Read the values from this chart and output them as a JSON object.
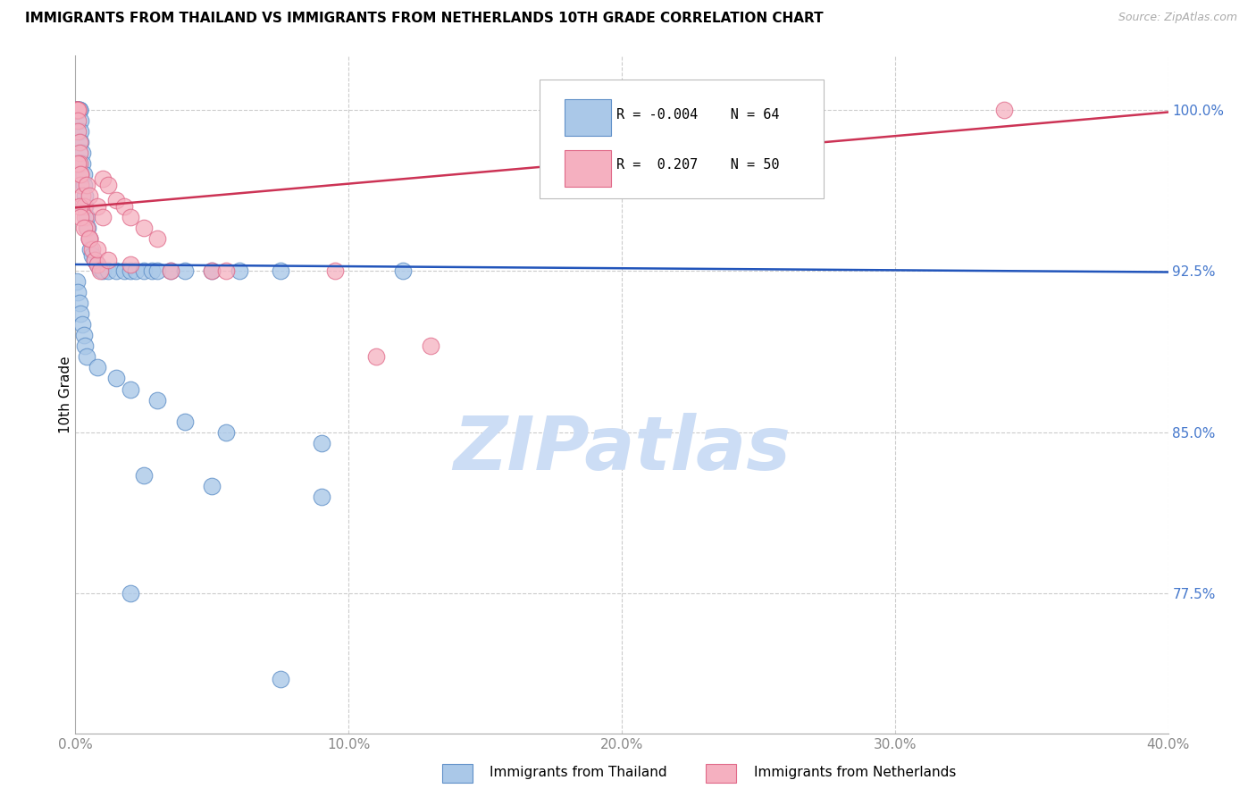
{
  "title": "IMMIGRANTS FROM THAILAND VS IMMIGRANTS FROM NETHERLANDS 10TH GRADE CORRELATION CHART",
  "source": "Source: ZipAtlas.com",
  "ylabel": "10th Grade",
  "x_tick_labels": [
    "0.0%",
    "10.0%",
    "20.0%",
    "30.0%",
    "40.0%"
  ],
  "x_tick_vals": [
    0.0,
    10.0,
    20.0,
    30.0,
    40.0
  ],
  "y_tick_labels": [
    "100.0%",
    "92.5%",
    "85.0%",
    "77.5%"
  ],
  "y_tick_vals": [
    100.0,
    92.5,
    85.0,
    77.5
  ],
  "xlim": [
    0.0,
    40.0
  ],
  "ylim": [
    71.0,
    102.5
  ],
  "legend_r_blue": "-0.004",
  "legend_n_blue": "64",
  "legend_r_pink": " 0.207",
  "legend_n_pink": "50",
  "blue_color": "#aac8e8",
  "pink_color": "#f5b0c0",
  "blue_edge": "#6090c8",
  "pink_edge": "#e06888",
  "trend_blue": "#2255bb",
  "trend_pink": "#cc3355",
  "watermark_color": "#ccddf5",
  "grid_color": "#cccccc",
  "ytick_color": "#4477cc",
  "xtick_color": "#888888",
  "blue_x": [
    0.05,
    0.05,
    0.05,
    0.05,
    0.05,
    0.1,
    0.1,
    0.1,
    0.1,
    0.15,
    0.15,
    0.15,
    0.2,
    0.2,
    0.2,
    0.25,
    0.25,
    0.3,
    0.3,
    0.35,
    0.35,
    0.4,
    0.45,
    0.5,
    0.55,
    0.6,
    0.7,
    0.8,
    0.9,
    1.0,
    1.2,
    1.5,
    1.8,
    2.0,
    2.2,
    2.5,
    2.8,
    3.0,
    3.5,
    4.0,
    5.0,
    6.0,
    7.5,
    12.0,
    0.05,
    0.1,
    0.15,
    0.2,
    0.25,
    0.3,
    0.35,
    0.4,
    0.8,
    1.5,
    2.0,
    3.0,
    4.0,
    5.5,
    9.0,
    2.5,
    5.0,
    9.0,
    2.0,
    7.5
  ],
  "blue_y": [
    100.0,
    100.0,
    100.0,
    100.0,
    100.0,
    100.0,
    100.0,
    100.0,
    100.0,
    100.0,
    100.0,
    100.0,
    99.5,
    99.0,
    98.5,
    98.0,
    97.5,
    97.0,
    96.5,
    96.0,
    95.5,
    95.0,
    94.5,
    94.0,
    93.5,
    93.2,
    93.0,
    92.8,
    92.6,
    92.5,
    92.5,
    92.5,
    92.5,
    92.5,
    92.5,
    92.5,
    92.5,
    92.5,
    92.5,
    92.5,
    92.5,
    92.5,
    92.5,
    92.5,
    92.0,
    91.5,
    91.0,
    90.5,
    90.0,
    89.5,
    89.0,
    88.5,
    88.0,
    87.5,
    87.0,
    86.5,
    85.5,
    85.0,
    84.5,
    83.0,
    82.5,
    82.0,
    77.5,
    73.5
  ],
  "pink_x": [
    0.05,
    0.05,
    0.05,
    0.05,
    0.05,
    0.1,
    0.1,
    0.1,
    0.1,
    0.15,
    0.15,
    0.15,
    0.2,
    0.2,
    0.25,
    0.3,
    0.35,
    0.4,
    0.5,
    0.6,
    0.7,
    0.8,
    0.9,
    1.0,
    1.2,
    1.5,
    1.8,
    2.0,
    2.5,
    3.0,
    0.15,
    0.2,
    0.3,
    0.5,
    0.8,
    1.2,
    2.0,
    3.5,
    5.0,
    5.5,
    9.5,
    11.0,
    13.0,
    34.0,
    0.1,
    0.2,
    0.4,
    0.5,
    0.8,
    1.0
  ],
  "pink_y": [
    100.0,
    100.0,
    100.0,
    100.0,
    100.0,
    100.0,
    100.0,
    99.5,
    99.0,
    98.5,
    98.0,
    97.5,
    97.0,
    96.5,
    96.0,
    95.5,
    95.0,
    94.5,
    94.0,
    93.5,
    93.0,
    92.8,
    92.5,
    96.8,
    96.5,
    95.8,
    95.5,
    95.0,
    94.5,
    94.0,
    95.5,
    95.0,
    94.5,
    94.0,
    93.5,
    93.0,
    92.8,
    92.5,
    92.5,
    92.5,
    92.5,
    88.5,
    89.0,
    100.0,
    97.5,
    97.0,
    96.5,
    96.0,
    95.5,
    95.0
  ]
}
